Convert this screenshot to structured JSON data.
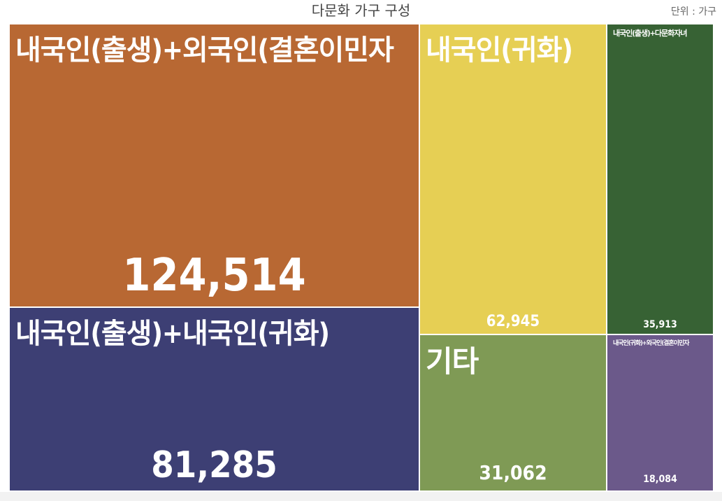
{
  "chart_data": {
    "type": "treemap",
    "title": "다문화 가구 구성",
    "unit_label": "단위 : 가구",
    "items": [
      {
        "label": "내국인(출생)+외국인(결혼이민자",
        "value": 124514,
        "value_text": "124,514",
        "color": "#b86833"
      },
      {
        "label": "내국인(출생)+내국인(귀화)",
        "value": 81285,
        "value_text": "81,285",
        "color": "#3d3f74"
      },
      {
        "label": "내국인(귀화)",
        "value": 62945,
        "value_text": "62,945",
        "color": "#e6cf54"
      },
      {
        "label": "내국인(출생)+다문화자녀",
        "value": 35913,
        "value_text": "35,913",
        "color": "#376234"
      },
      {
        "label": "기타",
        "value": 31062,
        "value_text": "31,062",
        "color": "#7f9a55"
      },
      {
        "label": "내국인(귀화)+외국인(결혼이민자",
        "value": 18084,
        "value_text": "18,084",
        "color": "#6b598a"
      }
    ]
  }
}
